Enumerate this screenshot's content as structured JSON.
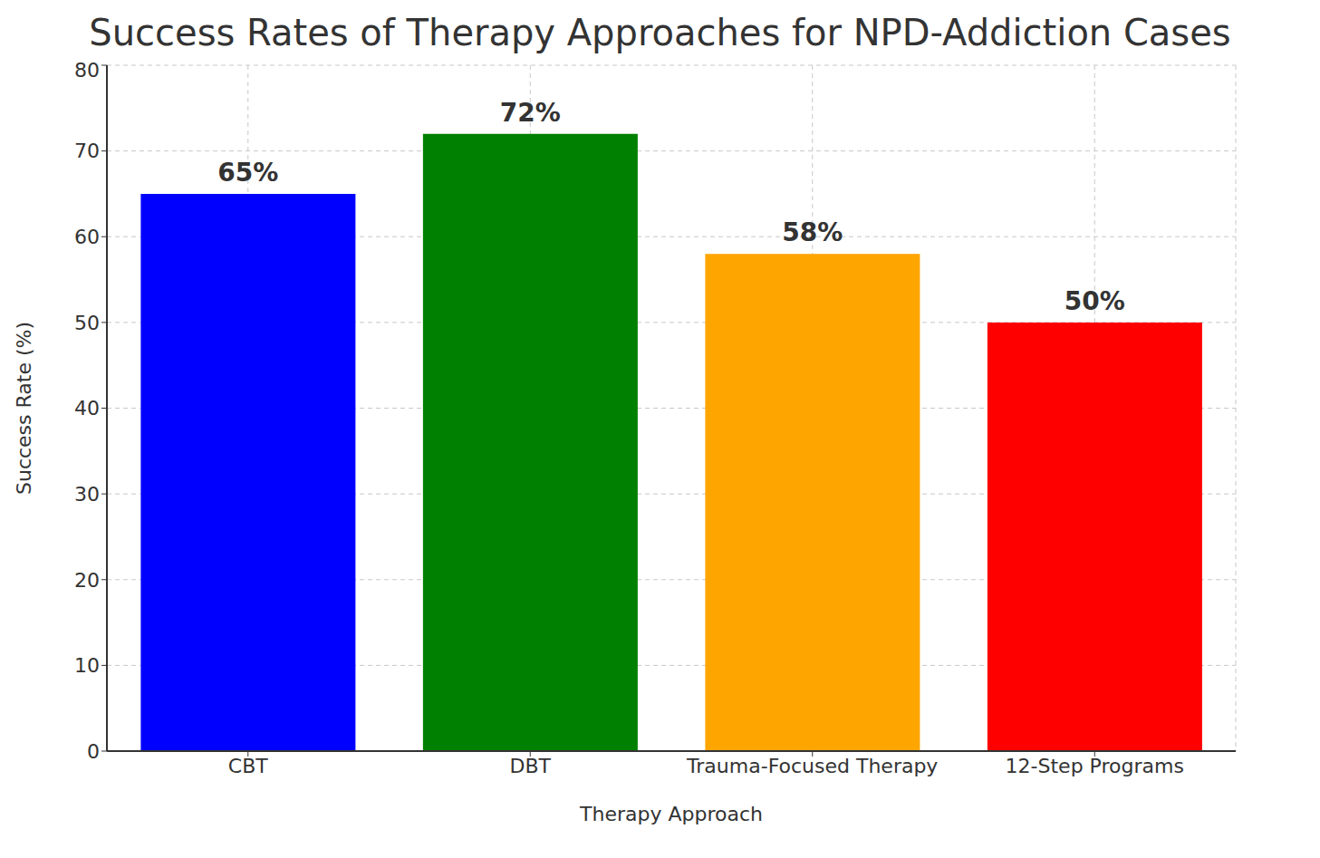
{
  "chart_data": {
    "type": "bar",
    "title": "Success Rates of Therapy Approaches for NPD-Addiction Cases",
    "x_label": "Therapy Approach",
    "y_label": "Success Rate (%)",
    "categories": [
      "CBT",
      "DBT",
      "Trauma-Focused Therapy",
      "12-Step Programs"
    ],
    "values": [
      65,
      72,
      58,
      50
    ],
    "value_labels": [
      "65%",
      "72%",
      "58%",
      "50%"
    ],
    "colors": [
      "#0000ff",
      "#008000",
      "#ffa500",
      "#ff0000"
    ],
    "ylim": [
      0,
      80
    ],
    "yticks": [
      0,
      10,
      20,
      30,
      40,
      50,
      60,
      70,
      80
    ],
    "grid": true,
    "data_labels": true
  }
}
